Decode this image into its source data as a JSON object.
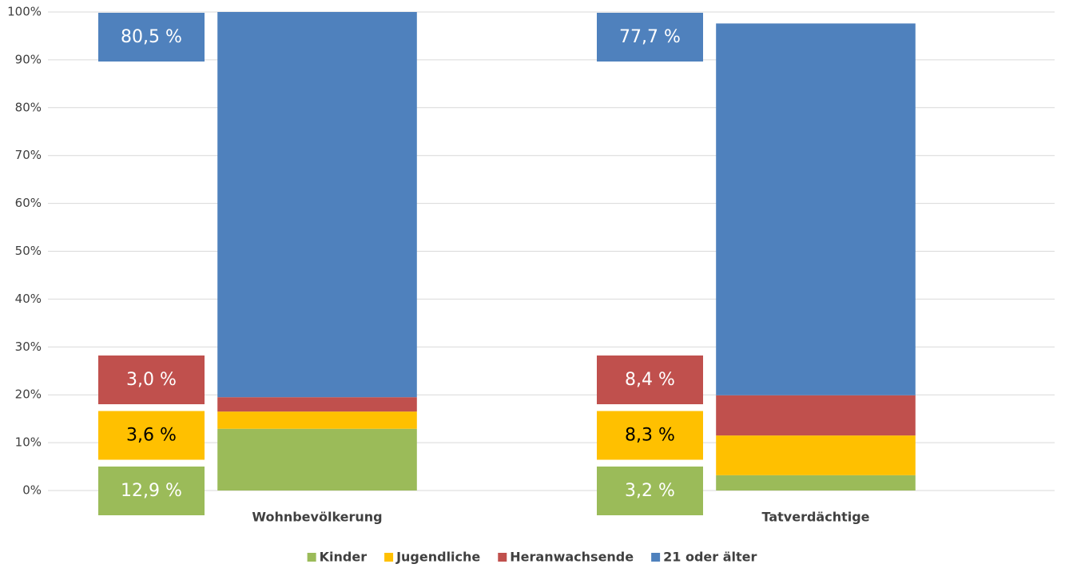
{
  "chart_data": {
    "type": "stacked_bar",
    "categories": [
      "Wohnbevölkerung",
      "Tatverdächtige"
    ],
    "series": [
      {
        "name": "Kinder",
        "color": "#9bbb59",
        "values": [
          12.9,
          3.2
        ],
        "value_labels": [
          "12,9 %",
          "3,2 %"
        ]
      },
      {
        "name": "Jugendliche",
        "color": "#ffc000",
        "values": [
          3.6,
          8.3
        ],
        "value_labels": [
          "3,6 %",
          "8,3 %"
        ]
      },
      {
        "name": "Heranwachsende",
        "color": "#c0504d",
        "values": [
          3.0,
          8.4
        ],
        "value_labels": [
          "3,0 %",
          "8,4 %"
        ]
      },
      {
        "name": "21 oder älter",
        "color": "#4f81bd",
        "values": [
          80.5,
          77.7
        ],
        "value_labels": [
          "80,5 %",
          "77,7 %"
        ]
      }
    ],
    "ylim": [
      0,
      100
    ],
    "yticks": [
      {
        "value": 0,
        "label": "0%"
      },
      {
        "value": 10,
        "label": "10%"
      },
      {
        "value": 20,
        "label": "20%"
      },
      {
        "value": 30,
        "label": "30%"
      },
      {
        "value": 40,
        "label": "40%"
      },
      {
        "value": 50,
        "label": "50%"
      },
      {
        "value": 60,
        "label": "60%"
      },
      {
        "value": 70,
        "label": "70%"
      },
      {
        "value": 80,
        "label": "80%"
      },
      {
        "value": 90,
        "label": "90%"
      },
      {
        "value": 100,
        "label": "100%"
      }
    ],
    "grid": true,
    "legend": "bottom"
  }
}
